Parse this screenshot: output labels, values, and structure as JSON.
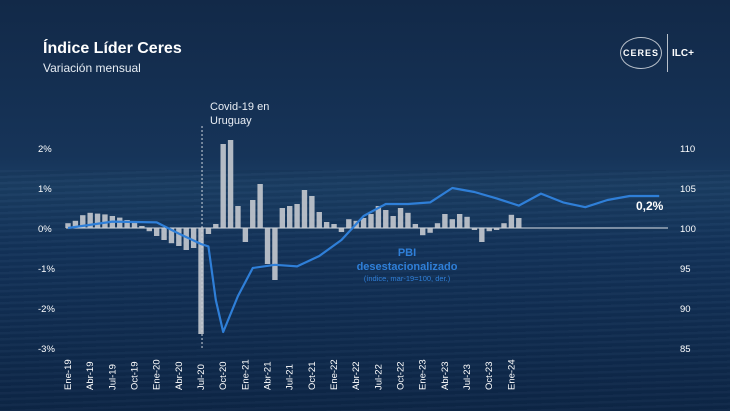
{
  "header": {
    "title": "Índice Líder Ceres",
    "subtitle": "Variación mensual",
    "logo_left": "CERES",
    "logo_right": "ILC+"
  },
  "chart_data": {
    "type": "bar",
    "x_tick_labels": [
      "Ene-19",
      "Abr-19",
      "Jul-19",
      "Oct-19",
      "Ene-20",
      "Abr-20",
      "Jul-20",
      "Oct-20",
      "Ene-21",
      "Abr-21",
      "Jul-21",
      "Oct-21",
      "Ene-22",
      "Abr-22",
      "Jul-22",
      "Oct-22",
      "Ene-23",
      "Abr-23",
      "Jul-23",
      "Oct-23",
      "Ene-24"
    ],
    "y_left_ticks": [
      "2%",
      "1%",
      "0%",
      "-1%",
      "-2%",
      "-3%"
    ],
    "y_left_range": [
      -3,
      2
    ],
    "y_right_ticks": [
      "110",
      "105",
      "100",
      "95",
      "90",
      "85"
    ],
    "y_right_range": [
      85,
      110
    ],
    "series": [
      {
        "kind": "bar",
        "unit": "%",
        "axis": "left",
        "color": "#c9cdd3",
        "values": [
          0.12,
          0.18,
          0.32,
          0.38,
          0.36,
          0.34,
          0.3,
          0.26,
          0.2,
          0.14,
          0.05,
          -0.08,
          -0.2,
          -0.3,
          -0.38,
          -0.45,
          -0.55,
          -0.5,
          -2.65,
          -0.15,
          0.1,
          2.1,
          2.2,
          0.55,
          -0.35,
          0.7,
          1.1,
          -0.9,
          -1.3,
          0.5,
          0.55,
          0.6,
          0.95,
          0.8,
          0.4,
          0.15,
          0.1,
          -0.1,
          0.22,
          0.18,
          0.25,
          0.35,
          0.55,
          0.45,
          0.3,
          0.5,
          0.38,
          0.1,
          -0.18,
          -0.12,
          0.12,
          0.35,
          0.22,
          0.35,
          0.28,
          -0.05,
          -0.35,
          -0.08,
          -0.05,
          0.12,
          0.33,
          0.25
        ]
      },
      {
        "kind": "line",
        "name": "PBI desestacionalizado",
        "note": "(índice, mar-19=100, der.)",
        "axis": "right",
        "color": "#2f7fd8",
        "x": [
          0,
          6,
          12,
          15,
          18,
          19,
          20,
          21,
          23,
          25,
          28,
          31,
          34,
          37,
          40,
          43,
          46,
          49,
          52,
          55,
          58,
          61,
          64,
          67,
          70,
          73,
          76,
          80
        ],
        "values": [
          100,
          100.8,
          100.7,
          99.3,
          98.0,
          97.7,
          91.0,
          87.0,
          91.5,
          95.0,
          95.4,
          95.2,
          96.5,
          98.5,
          101.5,
          103.0,
          103.0,
          103.2,
          105.0,
          104.5,
          103.7,
          102.8,
          104.3,
          103.2,
          102.6,
          103.5,
          104.0,
          104.0
        ]
      }
    ],
    "annotations": [
      {
        "text_line1": "Covid-19 en",
        "text_line2": "Uruguay"
      },
      {
        "label": "PBI",
        "label2": "desestacionalizado",
        "sub": "(índice, mar-19=100, der.)"
      },
      {
        "last_value": "0,2%"
      }
    ],
    "grid": false
  }
}
